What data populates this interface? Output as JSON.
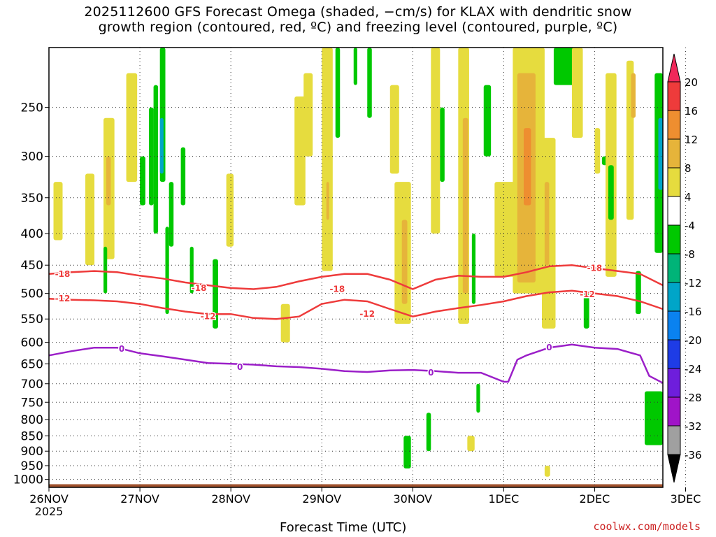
{
  "title_line1": "2025112600 GFS Forecast Omega (shaded, −cm/s) for KLAX with dendritic snow",
  "title_line2": "growth region (contoured, red, ºC) and freezing level (contoured, purple, ºC)",
  "credit": "coolwx.com/models",
  "chart_data": {
    "type": "heatmap",
    "xlabel": "Forecast Time (UTC)",
    "x_ticks": [
      "26NOV",
      "27NOV",
      "28NOV",
      "29NOV",
      "30NOV",
      "1DEC",
      "2DEC",
      "3DEC"
    ],
    "x_tick_sub": "2025",
    "x_range_days": [
      0,
      6.75
    ],
    "y_ticks": [
      250,
      300,
      350,
      400,
      450,
      500,
      550,
      600,
      650,
      700,
      750,
      800,
      850,
      900,
      950,
      1000
    ],
    "y_range_hpa": [
      200,
      1030
    ],
    "y_scale": "log-pressure",
    "grid": true,
    "colorbar": {
      "levels": [
        20,
        16,
        12,
        8,
        4,
        -4,
        -8,
        -12,
        -16,
        -20,
        -24,
        -28,
        -32,
        -36
      ],
      "colors": [
        "#f0285a",
        "#ee3b3b",
        "#ee8e30",
        "#e6b43a",
        "#e6dc3e",
        "#ffffff",
        "#00c800",
        "#00b478",
        "#00a5c8",
        "#0a82f0",
        "#1e3ce6",
        "#6e1edc",
        "#a014c8",
        "#a0a0a0",
        "#000000"
      ]
    },
    "contours": [
      {
        "name": "-18",
        "color": "#ee3b3b",
        "x": [
          0,
          0.25,
          0.5,
          0.75,
          1.0,
          1.25,
          1.5,
          1.75,
          2.0,
          2.25,
          2.5,
          2.75,
          3.0,
          3.25,
          3.5,
          3.75,
          4.0,
          4.25,
          4.5,
          4.75,
          5.0,
          5.25,
          5.5,
          5.75,
          6.0,
          6.25,
          6.5,
          6.75
        ],
        "y": [
          465,
          462,
          460,
          462,
          468,
          473,
          480,
          485,
          490,
          492,
          488,
          478,
          470,
          465,
          465,
          475,
          492,
          475,
          468,
          470,
          470,
          462,
          452,
          450,
          455,
          460,
          465,
          485
        ]
      },
      {
        "name": "-12",
        "color": "#ee3b3b",
        "x": [
          0,
          0.25,
          0.5,
          0.75,
          1.0,
          1.25,
          1.5,
          1.75,
          2.0,
          2.25,
          2.5,
          2.75,
          3.0,
          3.25,
          3.5,
          3.75,
          4.0,
          4.25,
          4.5,
          4.75,
          5.0,
          5.25,
          5.5,
          5.75,
          6.0,
          6.25,
          6.5,
          6.75
        ],
        "y": [
          510,
          512,
          513,
          515,
          520,
          528,
          535,
          540,
          540,
          548,
          550,
          545,
          520,
          512,
          515,
          530,
          545,
          535,
          528,
          522,
          515,
          505,
          498,
          495,
          500,
          505,
          515,
          530
        ]
      },
      {
        "name": "0",
        "color": "#9b1fc8",
        "x": [
          0,
          0.25,
          0.5,
          0.75,
          1.0,
          1.25,
          1.5,
          1.75,
          2.0,
          2.25,
          2.5,
          2.75,
          3.0,
          3.25,
          3.5,
          3.75,
          4.0,
          4.25,
          4.5,
          4.75,
          5.0,
          5.05,
          5.15,
          5.25,
          5.5,
          5.75,
          6.0,
          6.25,
          6.5,
          6.6,
          6.75
        ],
        "y": [
          630,
          620,
          612,
          612,
          625,
          632,
          640,
          648,
          650,
          652,
          656,
          658,
          662,
          668,
          670,
          666,
          665,
          668,
          672,
          672,
          695,
          695,
          640,
          630,
          612,
          605,
          612,
          615,
          630,
          680,
          698
        ]
      }
    ],
    "contour_labels": [
      {
        "text": "-18",
        "x": 0.15,
        "y": 465
      },
      {
        "text": "-12",
        "x": 0.15,
        "y": 510
      },
      {
        "text": "-18",
        "x": 1.65,
        "y": 490
      },
      {
        "text": "-12",
        "x": 1.75,
        "y": 545
      },
      {
        "text": "-18",
        "x": 3.17,
        "y": 492
      },
      {
        "text": "-12",
        "x": 3.5,
        "y": 540
      },
      {
        "text": "-18",
        "x": 6.0,
        "y": 455
      },
      {
        "text": "-12",
        "x": 5.92,
        "y": 502
      },
      {
        "text": "0",
        "x": 0.8,
        "y": 615
      },
      {
        "text": "0",
        "x": 2.1,
        "y": 658
      },
      {
        "text": "0",
        "x": 4.2,
        "y": 672
      },
      {
        "text": "0",
        "x": 5.5,
        "y": 612
      }
    ],
    "ground": {
      "color": "#a0522d",
      "top_hpa": 1018
    },
    "omega_cells": [
      {
        "x": 0.05,
        "w": 0.1,
        "y0": 330,
        "y1": 410,
        "v": 6
      },
      {
        "x": 0.4,
        "w": 0.1,
        "y0": 320,
        "y1": 450,
        "v": 6
      },
      {
        "x": 0.6,
        "w": 0.12,
        "y0": 260,
        "y1": 440,
        "v": 6
      },
      {
        "x": 0.63,
        "w": 0.05,
        "y0": 300,
        "y1": 360,
        "v": 10
      },
      {
        "x": 0.6,
        "w": 0.04,
        "y0": 420,
        "y1": 500,
        "v": -6
      },
      {
        "x": 0.85,
        "w": 0.12,
        "y0": 220,
        "y1": 330,
        "v": 6
      },
      {
        "x": 1.0,
        "w": 0.06,
        "y0": 300,
        "y1": 360,
        "v": -6
      },
      {
        "x": 1.1,
        "w": 0.05,
        "y0": 250,
        "y1": 360,
        "v": -6
      },
      {
        "x": 1.15,
        "w": 0.05,
        "y0": 230,
        "y1": 400,
        "v": -6
      },
      {
        "x": 1.22,
        "w": 0.06,
        "y0": 200,
        "y1": 330,
        "v": -6
      },
      {
        "x": 1.22,
        "w": 0.04,
        "y0": 260,
        "y1": 320,
        "v": -16
      },
      {
        "x": 1.32,
        "w": 0.05,
        "y0": 330,
        "y1": 420,
        "v": -6
      },
      {
        "x": 1.45,
        "w": 0.05,
        "y0": 290,
        "y1": 360,
        "v": -6
      },
      {
        "x": 1.28,
        "w": 0.04,
        "y0": 390,
        "y1": 540,
        "v": -6
      },
      {
        "x": 1.55,
        "w": 0.04,
        "y0": 420,
        "y1": 500,
        "v": -6
      },
      {
        "x": 1.8,
        "w": 0.06,
        "y0": 440,
        "y1": 570,
        "v": -6
      },
      {
        "x": 1.95,
        "w": 0.08,
        "y0": 320,
        "y1": 420,
        "v": 6
      },
      {
        "x": 2.55,
        "w": 0.1,
        "y0": 520,
        "y1": 600,
        "v": 6
      },
      {
        "x": 2.7,
        "w": 0.12,
        "y0": 240,
        "y1": 360,
        "v": 6
      },
      {
        "x": 2.8,
        "w": 0.1,
        "y0": 220,
        "y1": 300,
        "v": 6
      },
      {
        "x": 3.0,
        "w": 0.12,
        "y0": 200,
        "y1": 460,
        "v": 6
      },
      {
        "x": 3.05,
        "w": 0.03,
        "y0": 330,
        "y1": 380,
        "v": 10
      },
      {
        "x": 3.15,
        "w": 0.05,
        "y0": 200,
        "y1": 280,
        "v": -6
      },
      {
        "x": 3.35,
        "w": 0.04,
        "y0": 200,
        "y1": 230,
        "v": -6
      },
      {
        "x": 3.5,
        "w": 0.05,
        "y0": 200,
        "y1": 260,
        "v": -6
      },
      {
        "x": 3.75,
        "w": 0.1,
        "y0": 230,
        "y1": 320,
        "v": 6
      },
      {
        "x": 3.8,
        "w": 0.18,
        "y0": 330,
        "y1": 560,
        "v": 6
      },
      {
        "x": 3.88,
        "w": 0.06,
        "y0": 380,
        "y1": 520,
        "v": 10
      },
      {
        "x": 3.9,
        "w": 0.08,
        "y0": 850,
        "y1": 960,
        "v": -6
      },
      {
        "x": 4.15,
        "w": 0.05,
        "y0": 780,
        "y1": 900,
        "v": -6
      },
      {
        "x": 4.2,
        "w": 0.1,
        "y0": 200,
        "y1": 400,
        "v": 6
      },
      {
        "x": 4.3,
        "w": 0.05,
        "y0": 250,
        "y1": 330,
        "v": -6
      },
      {
        "x": 4.5,
        "w": 0.12,
        "y0": 200,
        "y1": 560,
        "v": 6
      },
      {
        "x": 4.55,
        "w": 0.06,
        "y0": 260,
        "y1": 500,
        "v": 10
      },
      {
        "x": 4.6,
        "w": 0.08,
        "y0": 850,
        "y1": 900,
        "v": 6
      },
      {
        "x": 4.65,
        "w": 0.04,
        "y0": 400,
        "y1": 520,
        "v": -6
      },
      {
        "x": 4.7,
        "w": 0.04,
        "y0": 700,
        "y1": 780,
        "v": -6
      },
      {
        "x": 4.78,
        "w": 0.08,
        "y0": 230,
        "y1": 300,
        "v": -6
      },
      {
        "x": 4.9,
        "w": 0.25,
        "y0": 330,
        "y1": 470,
        "v": 6
      },
      {
        "x": 5.1,
        "w": 0.35,
        "y0": 200,
        "y1": 500,
        "v": 6
      },
      {
        "x": 5.15,
        "w": 0.2,
        "y0": 220,
        "y1": 480,
        "v": 10
      },
      {
        "x": 5.22,
        "w": 0.08,
        "y0": 270,
        "y1": 360,
        "v": 14
      },
      {
        "x": 5.42,
        "w": 0.15,
        "y0": 280,
        "y1": 570,
        "v": 6
      },
      {
        "x": 5.45,
        "w": 0.05,
        "y0": 330,
        "y1": 450,
        "v": 10
      },
      {
        "x": 5.45,
        "w": 0.06,
        "y0": 950,
        "y1": 990,
        "v": 6
      },
      {
        "x": 5.55,
        "w": 0.25,
        "y0": 200,
        "y1": 230,
        "v": -6
      },
      {
        "x": 5.75,
        "w": 0.12,
        "y0": 200,
        "y1": 280,
        "v": 6
      },
      {
        "x": 5.88,
        "w": 0.06,
        "y0": 500,
        "y1": 570,
        "v": -6
      },
      {
        "x": 6.0,
        "w": 0.06,
        "y0": 270,
        "y1": 320,
        "v": 6
      },
      {
        "x": 6.08,
        "w": 0.06,
        "y0": 300,
        "y1": 310,
        "v": -6
      },
      {
        "x": 6.12,
        "w": 0.12,
        "y0": 220,
        "y1": 470,
        "v": 6
      },
      {
        "x": 6.15,
        "w": 0.06,
        "y0": 310,
        "y1": 380,
        "v": -6
      },
      {
        "x": 6.35,
        "w": 0.08,
        "y0": 210,
        "y1": 380,
        "v": 6
      },
      {
        "x": 6.4,
        "w": 0.05,
        "y0": 220,
        "y1": 260,
        "v": 10
      },
      {
        "x": 6.45,
        "w": 0.06,
        "y0": 460,
        "y1": 540,
        "v": -6
      },
      {
        "x": 6.55,
        "w": 0.2,
        "y0": 720,
        "y1": 880,
        "v": -6
      },
      {
        "x": 6.66,
        "w": 0.09,
        "y0": 220,
        "y1": 430,
        "v": -6
      },
      {
        "x": 6.7,
        "w": 0.05,
        "y0": 260,
        "y1": 340,
        "v": -16
      }
    ]
  }
}
